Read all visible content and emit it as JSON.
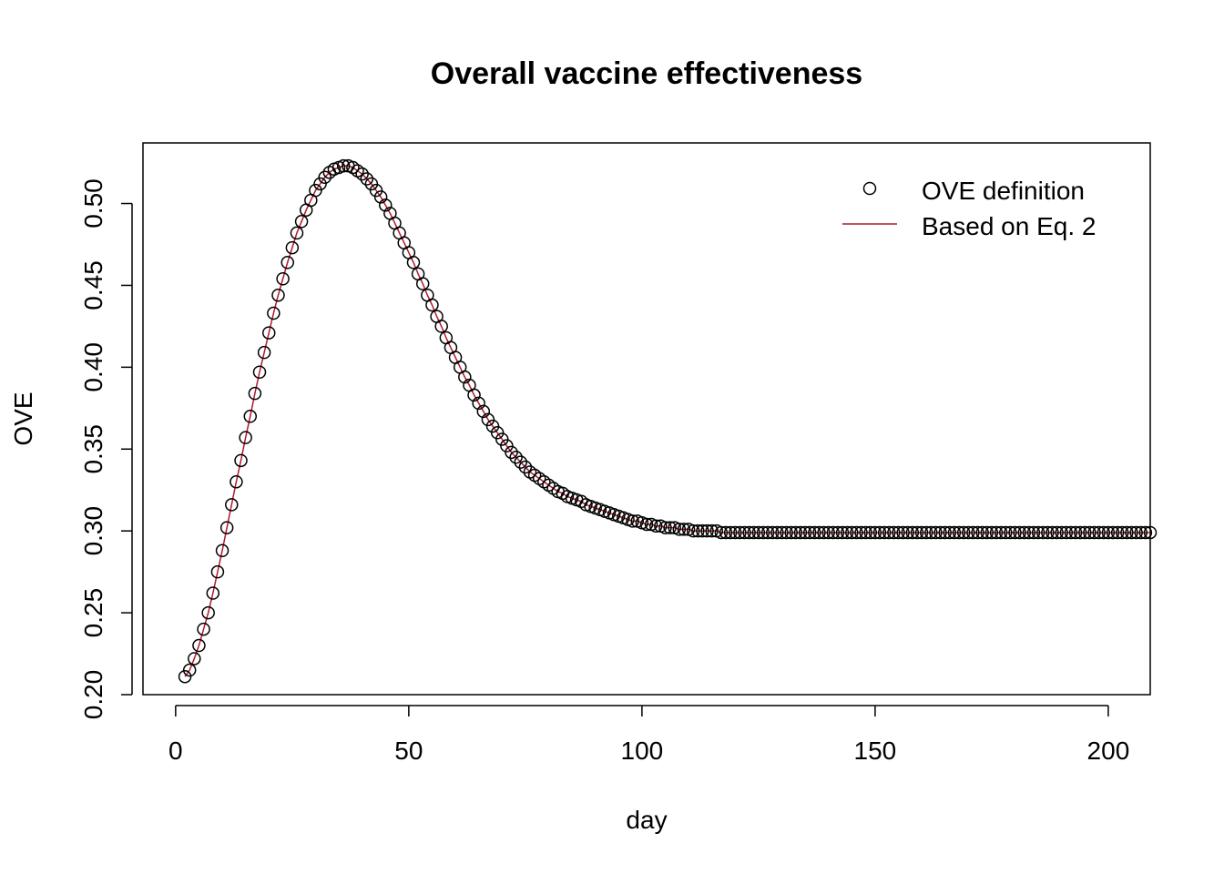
{
  "chart_data": {
    "type": "line",
    "title": "Overall vaccine effectiveness",
    "xlabel": "day",
    "ylabel": "OVE",
    "xlim": [
      -7,
      209
    ],
    "ylim": [
      0.2,
      0.537
    ],
    "x_ticks": [
      0,
      50,
      100,
      150,
      200
    ],
    "x_tick_labels": [
      "0",
      "50",
      "100",
      "150",
      "200"
    ],
    "y_ticks": [
      0.2,
      0.25,
      0.3,
      0.35,
      0.4,
      0.45,
      0.5
    ],
    "y_tick_labels": [
      "0.20",
      "0.25",
      "0.30",
      "0.35",
      "0.40",
      "0.45",
      "0.50"
    ],
    "grid": false,
    "legend_position": "top-right",
    "series": [
      {
        "name": "OVE definition",
        "style": "points",
        "marker": "open-circle",
        "color": "#000000",
        "x_start": 2,
        "x_step": 1,
        "values": [
          0.211,
          0.215,
          0.222,
          0.23,
          0.24,
          0.25,
          0.262,
          0.275,
          0.288,
          0.302,
          0.316,
          0.33,
          0.343,
          0.357,
          0.37,
          0.384,
          0.397,
          0.409,
          0.421,
          0.433,
          0.444,
          0.454,
          0.464,
          0.473,
          0.482,
          0.489,
          0.496,
          0.502,
          0.508,
          0.512,
          0.516,
          0.519,
          0.521,
          0.522,
          0.523,
          0.523,
          0.522,
          0.52,
          0.518,
          0.515,
          0.512,
          0.508,
          0.504,
          0.499,
          0.494,
          0.488,
          0.482,
          0.476,
          0.47,
          0.464,
          0.457,
          0.451,
          0.444,
          0.438,
          0.431,
          0.425,
          0.418,
          0.412,
          0.406,
          0.4,
          0.394,
          0.389,
          0.383,
          0.378,
          0.373,
          0.368,
          0.364,
          0.36,
          0.356,
          0.352,
          0.348,
          0.345,
          0.342,
          0.339,
          0.336,
          0.334,
          0.332,
          0.33,
          0.328,
          0.326,
          0.324,
          0.323,
          0.321,
          0.32,
          0.319,
          0.318,
          0.316,
          0.315,
          0.314,
          0.313,
          0.312,
          0.311,
          0.31,
          0.309,
          0.308,
          0.307,
          0.306,
          0.306,
          0.305,
          0.304,
          0.304,
          0.303,
          0.303,
          0.302,
          0.302,
          0.302,
          0.301,
          0.301,
          0.301,
          0.3,
          0.3,
          0.3,
          0.3,
          0.3,
          0.3,
          0.299,
          0.299,
          0.299,
          0.299,
          0.299,
          0.299,
          0.299,
          0.299,
          0.299,
          0.299,
          0.299,
          0.299,
          0.299,
          0.299,
          0.299,
          0.299,
          0.299,
          0.299,
          0.299,
          0.299,
          0.299,
          0.299,
          0.299,
          0.299,
          0.299,
          0.299,
          0.299,
          0.299,
          0.299,
          0.299,
          0.299,
          0.299,
          0.299,
          0.299,
          0.299,
          0.299,
          0.299,
          0.299,
          0.299,
          0.299,
          0.299,
          0.299,
          0.299,
          0.299,
          0.299,
          0.299,
          0.299,
          0.299,
          0.299,
          0.299,
          0.299,
          0.299,
          0.299,
          0.299,
          0.299,
          0.299,
          0.299,
          0.299,
          0.299,
          0.299,
          0.299,
          0.299,
          0.299,
          0.299,
          0.299,
          0.299,
          0.299,
          0.299,
          0.299,
          0.299,
          0.299,
          0.299,
          0.299,
          0.299,
          0.299,
          0.299,
          0.299,
          0.299,
          0.299,
          0.299,
          0.299,
          0.299,
          0.299,
          0.299,
          0.299,
          0.299,
          0.299,
          0.299,
          0.299,
          0.299,
          0.299,
          0.299,
          0.299
        ]
      },
      {
        "name": "Based on Eq. 2",
        "style": "line",
        "color": "#b2182b",
        "x_start": 2,
        "x_step": 1,
        "values": "same-as-series-0"
      }
    ]
  }
}
